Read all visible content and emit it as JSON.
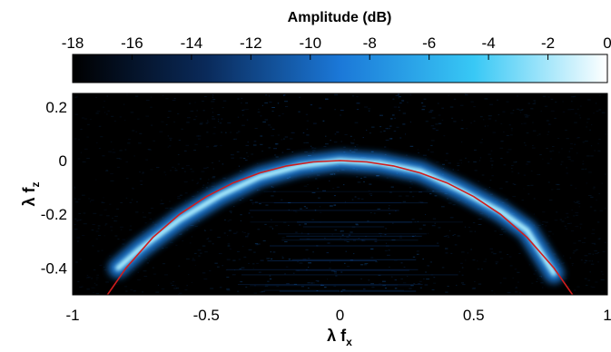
{
  "chart_data": {
    "type": "heatmap",
    "colorbar": {
      "title": "Amplitude (dB)",
      "range": [
        -18,
        0
      ],
      "ticks": [
        "-18",
        "-16",
        "-14",
        "-12",
        "-10",
        "-8",
        "-6",
        "-4",
        "-2",
        "0"
      ],
      "position": "top",
      "colors": [
        "#000000",
        "#0a2a5a",
        "#1b78d8",
        "#38c8f5",
        "#ffffff"
      ]
    },
    "xlabel": {
      "main": "λ f",
      "sub": "x"
    },
    "ylabel": {
      "main": "λ f",
      "sub": "z"
    },
    "xlim": [
      -1,
      1
    ],
    "ylim": [
      -0.5,
      0.25
    ],
    "xticks": [
      {
        "value": -1,
        "label": "-1"
      },
      {
        "value": -0.5,
        "label": "-0.5"
      },
      {
        "value": 0,
        "label": "0"
      },
      {
        "value": 0.5,
        "label": "0.5"
      },
      {
        "value": 1,
        "label": "1"
      }
    ],
    "yticks": [
      {
        "value": 0.2,
        "label": "0.2"
      },
      {
        "value": 0,
        "label": "0"
      },
      {
        "value": -0.2,
        "label": "-0.2"
      },
      {
        "value": -0.4,
        "label": "-0.4"
      }
    ],
    "bright_arc": {
      "x": [
        -0.83,
        -0.75,
        -0.6,
        -0.45,
        -0.3,
        -0.15,
        0,
        0.15,
        0.3,
        0.45,
        0.6,
        0.7,
        0.8
      ],
      "y": [
        -0.4,
        -0.33,
        -0.22,
        -0.13,
        -0.06,
        -0.02,
        0.0,
        -0.01,
        -0.04,
        -0.11,
        -0.19,
        -0.26,
        -0.42
      ],
      "peak_db": 0
    },
    "reference_curve": {
      "color": "#d01c1c",
      "x": [
        -0.87,
        -0.8,
        -0.7,
        -0.6,
        -0.5,
        -0.4,
        -0.3,
        -0.2,
        -0.1,
        0,
        0.1,
        0.2,
        0.3,
        0.4,
        0.5,
        0.6,
        0.7,
        0.8,
        0.87
      ],
      "y": [
        -0.5,
        -0.4,
        -0.286,
        -0.2,
        -0.134,
        -0.083,
        -0.046,
        -0.02,
        -0.005,
        0,
        -0.005,
        -0.02,
        -0.046,
        -0.083,
        -0.134,
        -0.2,
        -0.286,
        -0.4,
        -0.5
      ]
    }
  }
}
